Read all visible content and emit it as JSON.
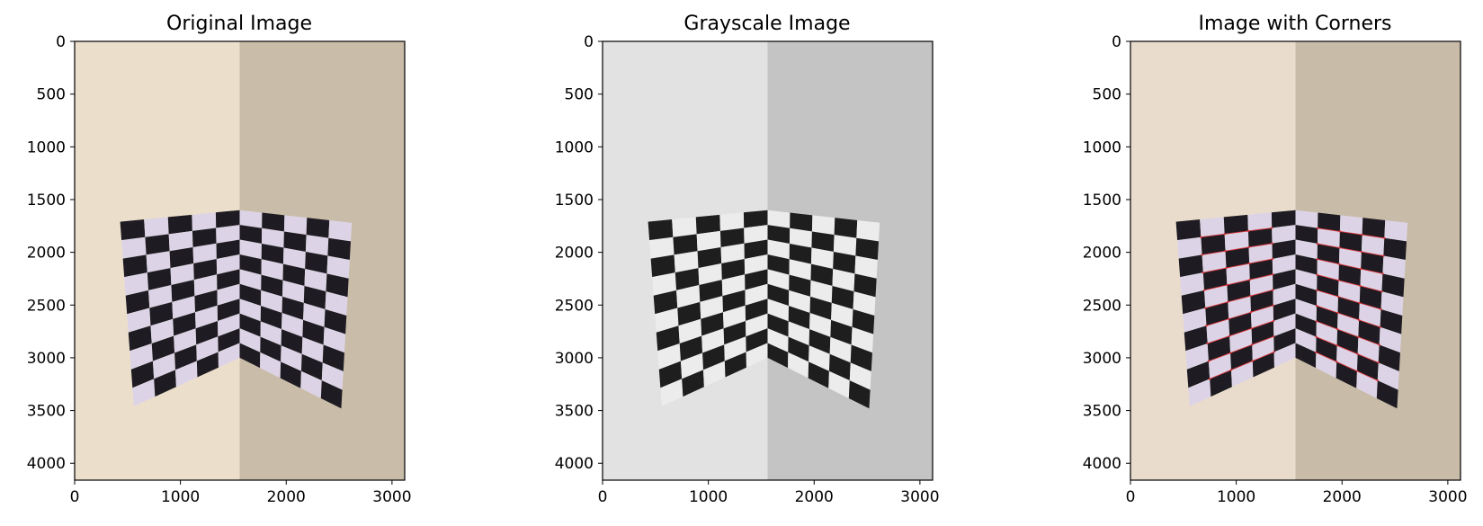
{
  "panels": [
    {
      "title": "Original Image",
      "variant": "original",
      "wall_left": "#ebdfcc",
      "wall_right": "#c9bda9",
      "light_square": "#dcd4e6",
      "dark_square": "#1e1c22",
      "corner_marker_color": "",
      "x_ticks": [
        "0",
        "1000",
        "2000",
        "3000"
      ],
      "y_ticks": [
        "0",
        "500",
        "1000",
        "1500",
        "2000",
        "2500",
        "3000",
        "3500",
        "4000"
      ]
    },
    {
      "title": "Grayscale Image",
      "variant": "grayscale",
      "wall_left": "#e2e2e2",
      "wall_right": "#c4c4c4",
      "light_square": "#ececec",
      "dark_square": "#1e1e1e",
      "corner_marker_color": "",
      "x_ticks": [
        "0",
        "1000",
        "2000",
        "3000"
      ],
      "y_ticks": [
        "0",
        "500",
        "1000",
        "1500",
        "2000",
        "2500",
        "3000",
        "3500",
        "4000"
      ]
    },
    {
      "title": "Image with Corners",
      "variant": "corners",
      "wall_left": "#e9dccc",
      "wall_right": "#c8bba8",
      "light_square": "#dcd4e6",
      "dark_square": "#1e1c22",
      "corner_marker_color": "#d8343a",
      "x_ticks": [
        "0",
        "1000",
        "2000",
        "3000"
      ],
      "y_ticks": [
        "0",
        "500",
        "1000",
        "1500",
        "2000",
        "2500",
        "3000",
        "3500",
        "4000"
      ]
    }
  ]
}
